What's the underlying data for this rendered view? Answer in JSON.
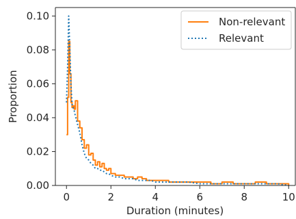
{
  "chart_data": {
    "type": "line",
    "title": "",
    "xlabel": "Duration (minutes)",
    "ylabel": "Proportion",
    "xlim": [
      -0.5,
      10.3
    ],
    "ylim": [
      0,
      0.105
    ],
    "x_ticks": [
      0,
      2,
      4,
      6,
      8,
      10
    ],
    "x_tick_labels": [
      "0",
      "2",
      "4",
      "6",
      "8",
      "10"
    ],
    "y_ticks": [
      0,
      0.02,
      0.04,
      0.06,
      0.08,
      0.1
    ],
    "y_tick_labels": [
      "0.00",
      "0.02",
      "0.04",
      "0.06",
      "0.08",
      "0.10"
    ],
    "grid": false,
    "legend_position": "top-right",
    "series": [
      {
        "name": "Non-relevant",
        "color": "#ff7f0e",
        "style": "solid-step",
        "x": [
          0.0,
          0.05,
          0.1,
          0.15,
          0.2,
          0.25,
          0.3,
          0.35,
          0.4,
          0.5,
          0.6,
          0.7,
          0.8,
          0.9,
          1.0,
          1.1,
          1.2,
          1.3,
          1.4,
          1.5,
          1.6,
          1.7,
          1.8,
          1.9,
          2.0,
          2.2,
          2.4,
          2.6,
          2.8,
          3.0,
          3.2,
          3.4,
          3.6,
          3.8,
          4.0,
          4.3,
          4.6,
          5.0,
          5.5,
          6.0,
          6.5,
          7.0,
          7.5,
          8.0,
          8.5,
          9.0,
          9.5,
          10.0
        ],
        "values": [
          0.03,
          0.052,
          0.085,
          0.066,
          0.049,
          0.046,
          0.047,
          0.045,
          0.05,
          0.038,
          0.034,
          0.027,
          0.022,
          0.024,
          0.018,
          0.019,
          0.015,
          0.012,
          0.014,
          0.011,
          0.013,
          0.01,
          0.009,
          0.01,
          0.007,
          0.006,
          0.006,
          0.005,
          0.005,
          0.004,
          0.005,
          0.004,
          0.003,
          0.003,
          0.003,
          0.003,
          0.002,
          0.002,
          0.002,
          0.002,
          0.001,
          0.002,
          0.001,
          0.001,
          0.002,
          0.001,
          0.001,
          0.0
        ]
      },
      {
        "name": "Relevant",
        "color": "#1f77b4",
        "style": "dotted",
        "x": [
          0.0,
          0.05,
          0.1,
          0.15,
          0.2,
          0.25,
          0.3,
          0.35,
          0.4,
          0.5,
          0.6,
          0.7,
          0.8,
          0.9,
          1.0,
          1.1,
          1.2,
          1.3,
          1.4,
          1.5,
          1.6,
          1.7,
          1.8,
          1.9,
          2.0,
          2.2,
          2.4,
          2.6,
          2.8,
          3.0,
          3.2,
          3.4,
          3.6,
          3.8,
          4.0,
          4.3,
          4.6,
          5.0,
          5.5,
          6.0,
          6.5,
          7.0,
          7.5,
          8.0,
          8.5,
          9.0,
          9.5,
          10.0
        ],
        "values": [
          0.049,
          0.07,
          0.1,
          0.08,
          0.06,
          0.048,
          0.046,
          0.044,
          0.041,
          0.036,
          0.031,
          0.024,
          0.019,
          0.016,
          0.015,
          0.013,
          0.012,
          0.01,
          0.01,
          0.009,
          0.009,
          0.008,
          0.007,
          0.007,
          0.006,
          0.005,
          0.005,
          0.004,
          0.004,
          0.004,
          0.003,
          0.003,
          0.003,
          0.003,
          0.002,
          0.002,
          0.002,
          0.002,
          0.002,
          0.001,
          0.001,
          0.001,
          0.001,
          0.001,
          0.001,
          0.001,
          0.001,
          0.0
        ]
      }
    ]
  }
}
